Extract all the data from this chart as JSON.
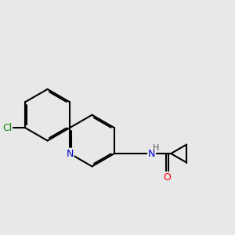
{
  "bg_color": "#e8e8e8",
  "bond_color": "#000000",
  "bond_width": 1.5,
  "dbo": 0.055,
  "atom_colors": {
    "N": "#0000cd",
    "O": "#ff0000",
    "Cl": "#008000",
    "H": "#555555",
    "C": "#000000"
  },
  "font_size": 9,
  "figsize": [
    3.0,
    3.0
  ],
  "dpi": 100
}
